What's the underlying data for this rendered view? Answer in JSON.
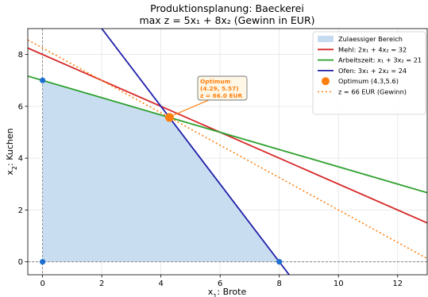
{
  "chart_data": {
    "type": "line",
    "title": "Produktionsplanung: Baeckerei",
    "subtitle": "max z = 5x₁ + 8x₂ (Gewinn in EUR)",
    "xlabel_prefix": "x",
    "xlabel_sub": "1",
    "xlabel_suffix": ": Brote",
    "ylabel_prefix": "x",
    "ylabel_sub": "2",
    "ylabel_suffix": ": Kuchen",
    "xlim": [
      -0.5,
      13
    ],
    "ylim": [
      -0.5,
      9
    ],
    "xticks": [
      0,
      2,
      4,
      6,
      8,
      10,
      12
    ],
    "yticks": [
      0,
      2,
      4,
      6,
      8
    ],
    "grid": true,
    "feasible_region": {
      "name": "Zulaessiger Bereich",
      "color": "#c6dbf0",
      "vertices": [
        [
          0,
          0
        ],
        [
          0,
          7
        ],
        [
          4.29,
          5.57
        ],
        [
          8,
          0
        ]
      ]
    },
    "constraints": [
      {
        "name": "Mehl: 2x₁ + 4x₂ = 32",
        "a": 2,
        "b": 4,
        "c": 32,
        "color": "#d62728"
      },
      {
        "name": "Arbeitszeit: x₁ + 3x₂ = 21",
        "a": 1,
        "b": 3,
        "c": 21,
        "color": "#2ca02c"
      },
      {
        "name": "Ofen: 3x₁ + 2x₂ = 24",
        "a": 3,
        "b": 2,
        "c": 24,
        "color": "#1f1fa8"
      }
    ],
    "optimum": {
      "name": "Optimum (4.3,5.6)",
      "x": 4.29,
      "y": 5.57,
      "color": "#ff7f0e"
    },
    "objective_line": {
      "name": "z = 66 EUR (Gewinn)",
      "a": 5,
      "b": 8,
      "c": 66,
      "color": "#ff7f0e"
    },
    "vertex_points": {
      "color": "#1f6fd0",
      "points": [
        [
          0,
          0
        ],
        [
          0,
          7
        ],
        [
          8,
          0
        ]
      ]
    },
    "annotation": {
      "lines": [
        "Optimum",
        "(4.29, 5.57)",
        "z = 66.0 EUR"
      ],
      "color": "#ff7f0e"
    },
    "legend_position": "top-right"
  }
}
